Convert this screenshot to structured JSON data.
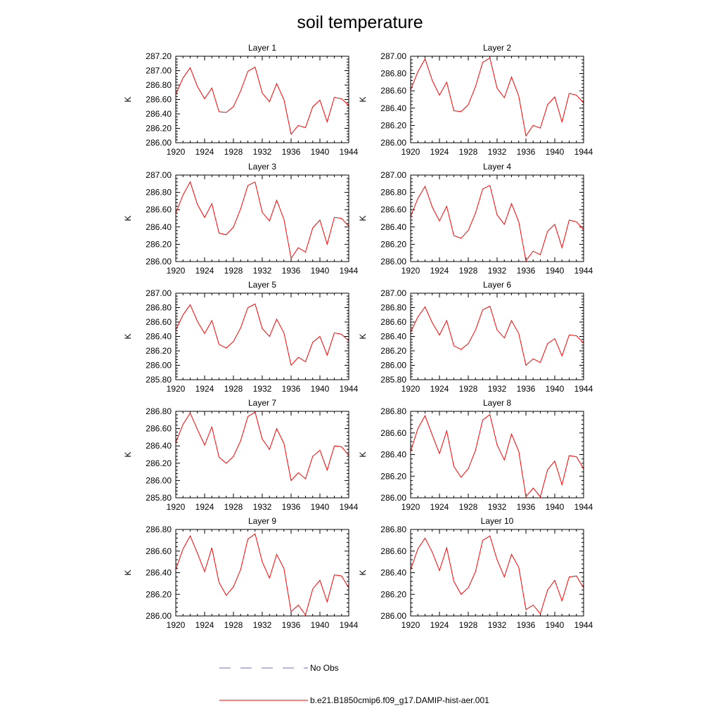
{
  "figure": {
    "title": "soil temperature"
  },
  "legend": {
    "items": [
      {
        "label": "No Obs",
        "color": "#6f6fc9",
        "style": "dashed"
      },
      {
        "label": "b.e21.B1850cmip6.f09_g17.DAMIP-hist-aer.001",
        "color": "#ff0000",
        "style": "solid"
      }
    ]
  },
  "chart_data": [
    {
      "type": "line",
      "title": "Layer 1",
      "xlabel": "",
      "ylabel": "K",
      "xlim": [
        1920,
        1944
      ],
      "ylim": [
        286.0,
        287.2
      ],
      "xticks": [
        "1920",
        "1924",
        "1928",
        "1932",
        "1936",
        "1940",
        "1944"
      ],
      "yticks": [
        "286.00",
        "286.20",
        "286.40",
        "286.60",
        "286.80",
        "287.00",
        "287.20"
      ],
      "series": [
        {
          "color": "#ff0000",
          "x": [
            1920,
            1921,
            1922,
            1923,
            1924,
            1925,
            1926,
            1927,
            1928,
            1929,
            1930,
            1931,
            1932,
            1933,
            1934,
            1935,
            1936,
            1937,
            1938,
            1939,
            1940,
            1941,
            1942,
            1943,
            1944
          ],
          "y": [
            286.67,
            286.9,
            287.04,
            286.78,
            286.61,
            286.76,
            286.43,
            286.42,
            286.5,
            286.72,
            286.99,
            287.05,
            286.69,
            286.57,
            286.82,
            286.6,
            286.12,
            286.24,
            286.21,
            286.5,
            286.59,
            286.29,
            286.63,
            286.61,
            286.52
          ]
        }
      ]
    },
    {
      "type": "line",
      "title": "Layer 2",
      "xlabel": "",
      "ylabel": "K",
      "xlim": [
        1920,
        1944
      ],
      "ylim": [
        286.0,
        287.0
      ],
      "xticks": [
        "1920",
        "1924",
        "1928",
        "1932",
        "1936",
        "1940",
        "1944"
      ],
      "yticks": [
        "286.00",
        "286.20",
        "286.40",
        "286.60",
        "286.80",
        "287.00"
      ],
      "series": [
        {
          "color": "#ff0000",
          "x": [
            1920,
            1921,
            1922,
            1923,
            1924,
            1925,
            1926,
            1927,
            1928,
            1929,
            1930,
            1931,
            1932,
            1933,
            1934,
            1935,
            1936,
            1937,
            1938,
            1939,
            1940,
            1941,
            1942,
            1943,
            1944
          ],
          "y": [
            286.61,
            286.82,
            286.97,
            286.72,
            286.55,
            286.7,
            286.37,
            286.36,
            286.44,
            286.65,
            286.93,
            286.98,
            286.63,
            286.52,
            286.76,
            286.54,
            286.08,
            286.2,
            286.17,
            286.44,
            286.53,
            286.24,
            286.57,
            286.55,
            286.46
          ]
        }
      ]
    },
    {
      "type": "line",
      "title": "Layer 3",
      "xlabel": "",
      "ylabel": "K",
      "xlim": [
        1920,
        1944
      ],
      "ylim": [
        286.0,
        287.0
      ],
      "xticks": [
        "1920",
        "1924",
        "1928",
        "1932",
        "1936",
        "1940",
        "1944"
      ],
      "yticks": [
        "286.00",
        "286.20",
        "286.40",
        "286.60",
        "286.80",
        "287.00"
      ],
      "series": [
        {
          "color": "#ff0000",
          "x": [
            1920,
            1921,
            1922,
            1923,
            1924,
            1925,
            1926,
            1927,
            1928,
            1929,
            1930,
            1931,
            1932,
            1933,
            1934,
            1935,
            1936,
            1937,
            1938,
            1939,
            1940,
            1941,
            1942,
            1943,
            1944
          ],
          "y": [
            286.56,
            286.77,
            286.92,
            286.66,
            286.51,
            286.67,
            286.33,
            286.31,
            286.4,
            286.61,
            286.88,
            286.92,
            286.57,
            286.47,
            286.71,
            286.49,
            286.04,
            286.16,
            286.11,
            286.39,
            286.48,
            286.2,
            286.51,
            286.5,
            286.41
          ]
        }
      ]
    },
    {
      "type": "line",
      "title": "Layer 4",
      "xlabel": "",
      "ylabel": "K",
      "xlim": [
        1920,
        1944
      ],
      "ylim": [
        286.0,
        287.0
      ],
      "xticks": [
        "1920",
        "1924",
        "1928",
        "1932",
        "1936",
        "1940",
        "1944"
      ],
      "yticks": [
        "286.00",
        "286.20",
        "286.40",
        "286.60",
        "286.80",
        "287.00"
      ],
      "series": [
        {
          "color": "#ff0000",
          "x": [
            1920,
            1921,
            1922,
            1923,
            1924,
            1925,
            1926,
            1927,
            1928,
            1929,
            1930,
            1931,
            1932,
            1933,
            1934,
            1935,
            1936,
            1937,
            1938,
            1939,
            1940,
            1941,
            1942,
            1943,
            1944
          ],
          "y": [
            286.52,
            286.73,
            286.87,
            286.63,
            286.47,
            286.64,
            286.3,
            286.27,
            286.36,
            286.56,
            286.84,
            286.88,
            286.54,
            286.43,
            286.67,
            286.46,
            286.01,
            286.12,
            286.08,
            286.35,
            286.43,
            286.16,
            286.48,
            286.46,
            286.37
          ]
        }
      ]
    },
    {
      "type": "line",
      "title": "Layer 5",
      "xlabel": "",
      "ylabel": "K",
      "xlim": [
        1920,
        1944
      ],
      "ylim": [
        285.8,
        287.0
      ],
      "xticks": [
        "1920",
        "1924",
        "1928",
        "1932",
        "1936",
        "1940",
        "1944"
      ],
      "yticks": [
        "285.80",
        "286.00",
        "286.20",
        "286.40",
        "286.60",
        "286.80",
        "287.00"
      ],
      "series": [
        {
          "color": "#ff0000",
          "x": [
            1920,
            1921,
            1922,
            1923,
            1924,
            1925,
            1926,
            1927,
            1928,
            1929,
            1930,
            1931,
            1932,
            1933,
            1934,
            1935,
            1936,
            1937,
            1938,
            1939,
            1940,
            1941,
            1942,
            1943,
            1944
          ],
          "y": [
            286.49,
            286.7,
            286.84,
            286.61,
            286.44,
            286.62,
            286.29,
            286.24,
            286.33,
            286.52,
            286.8,
            286.85,
            286.51,
            286.4,
            286.64,
            286.45,
            286.0,
            286.11,
            286.05,
            286.32,
            286.4,
            286.14,
            286.45,
            286.43,
            286.34
          ]
        }
      ]
    },
    {
      "type": "line",
      "title": "Layer 6",
      "xlabel": "",
      "ylabel": "K",
      "xlim": [
        1920,
        1944
      ],
      "ylim": [
        285.8,
        287.0
      ],
      "xticks": [
        "1920",
        "1924",
        "1928",
        "1932",
        "1936",
        "1940",
        "1944"
      ],
      "yticks": [
        "285.80",
        "286.00",
        "286.20",
        "286.40",
        "286.60",
        "286.80",
        "287.00"
      ],
      "series": [
        {
          "color": "#ff0000",
          "x": [
            1920,
            1921,
            1922,
            1923,
            1924,
            1925,
            1926,
            1927,
            1928,
            1929,
            1930,
            1931,
            1932,
            1933,
            1934,
            1935,
            1936,
            1937,
            1938,
            1939,
            1940,
            1941,
            1942,
            1943,
            1944
          ],
          "y": [
            286.46,
            286.67,
            286.81,
            286.59,
            286.42,
            286.62,
            286.27,
            286.22,
            286.3,
            286.49,
            286.77,
            286.82,
            286.49,
            286.38,
            286.62,
            286.44,
            286.0,
            286.09,
            286.04,
            286.3,
            286.37,
            286.13,
            286.42,
            286.41,
            286.31
          ]
        }
      ]
    },
    {
      "type": "line",
      "title": "Layer 7",
      "xlabel": "",
      "ylabel": "K",
      "xlim": [
        1920,
        1944
      ],
      "ylim": [
        285.8,
        286.8
      ],
      "xticks": [
        "1920",
        "1924",
        "1928",
        "1932",
        "1936",
        "1940",
        "1944"
      ],
      "yticks": [
        "285.80",
        "286.00",
        "286.20",
        "286.40",
        "286.60",
        "286.80"
      ],
      "series": [
        {
          "color": "#ff0000",
          "x": [
            1920,
            1921,
            1922,
            1923,
            1924,
            1925,
            1926,
            1927,
            1928,
            1929,
            1930,
            1931,
            1932,
            1933,
            1934,
            1935,
            1936,
            1937,
            1938,
            1939,
            1940,
            1941,
            1942,
            1943,
            1944
          ],
          "y": [
            286.44,
            286.65,
            286.78,
            286.59,
            286.41,
            286.62,
            286.27,
            286.2,
            286.28,
            286.46,
            286.74,
            286.79,
            286.48,
            286.36,
            286.6,
            286.43,
            286.0,
            286.09,
            286.02,
            286.28,
            286.35,
            286.12,
            286.4,
            286.39,
            286.29
          ]
        }
      ]
    },
    {
      "type": "line",
      "title": "Layer 8",
      "xlabel": "",
      "ylabel": "K",
      "xlim": [
        1920,
        1944
      ],
      "ylim": [
        286.0,
        286.8
      ],
      "xticks": [
        "1920",
        "1924",
        "1928",
        "1932",
        "1936",
        "1940",
        "1944"
      ],
      "yticks": [
        "286.00",
        "286.20",
        "286.40",
        "286.60",
        "286.80"
      ],
      "series": [
        {
          "color": "#ff0000",
          "x": [
            1920,
            1921,
            1922,
            1923,
            1924,
            1925,
            1926,
            1927,
            1928,
            1929,
            1930,
            1931,
            1932,
            1933,
            1934,
            1935,
            1936,
            1937,
            1938,
            1939,
            1940,
            1941,
            1942,
            1943,
            1944
          ],
          "y": [
            286.43,
            286.64,
            286.76,
            286.58,
            286.41,
            286.62,
            286.29,
            286.19,
            286.27,
            286.44,
            286.72,
            286.77,
            286.49,
            286.35,
            286.59,
            286.43,
            286.01,
            286.09,
            286.01,
            286.26,
            286.34,
            286.12,
            286.39,
            286.38,
            286.27
          ]
        }
      ]
    },
    {
      "type": "line",
      "title": "Layer 9",
      "xlabel": "",
      "ylabel": "K",
      "xlim": [
        1920,
        1944
      ],
      "ylim": [
        286.0,
        286.8
      ],
      "xticks": [
        "1920",
        "1924",
        "1928",
        "1932",
        "1936",
        "1940",
        "1944"
      ],
      "yticks": [
        "286.00",
        "286.20",
        "286.40",
        "286.60",
        "286.80"
      ],
      "series": [
        {
          "color": "#ff0000",
          "x": [
            1920,
            1921,
            1922,
            1923,
            1924,
            1925,
            1926,
            1927,
            1928,
            1929,
            1930,
            1931,
            1932,
            1933,
            1934,
            1935,
            1936,
            1937,
            1938,
            1939,
            1940,
            1941,
            1942,
            1943,
            1944
          ],
          "y": [
            286.43,
            286.62,
            286.74,
            286.58,
            286.41,
            286.63,
            286.31,
            286.19,
            286.27,
            286.43,
            286.71,
            286.76,
            286.5,
            286.35,
            286.57,
            286.44,
            286.04,
            286.1,
            286.01,
            286.25,
            286.33,
            286.13,
            286.38,
            286.37,
            286.26
          ]
        }
      ]
    },
    {
      "type": "line",
      "title": "Layer 10",
      "xlabel": "",
      "ylabel": "K",
      "xlim": [
        1920,
        1944
      ],
      "ylim": [
        286.0,
        286.8
      ],
      "xticks": [
        "1920",
        "1924",
        "1928",
        "1932",
        "1936",
        "1940",
        "1944"
      ],
      "yticks": [
        "286.00",
        "286.20",
        "286.40",
        "286.60",
        "286.80"
      ],
      "series": [
        {
          "color": "#ff0000",
          "x": [
            1920,
            1921,
            1922,
            1923,
            1924,
            1925,
            1926,
            1927,
            1928,
            1929,
            1930,
            1931,
            1932,
            1933,
            1934,
            1935,
            1936,
            1937,
            1938,
            1939,
            1940,
            1941,
            1942,
            1943,
            1944
          ],
          "y": [
            286.43,
            286.62,
            286.72,
            286.59,
            286.42,
            286.63,
            286.32,
            286.2,
            286.26,
            286.41,
            286.7,
            286.74,
            286.52,
            286.36,
            286.57,
            286.45,
            286.06,
            286.1,
            286.02,
            286.24,
            286.33,
            286.14,
            286.36,
            286.37,
            286.26
          ]
        }
      ]
    }
  ]
}
